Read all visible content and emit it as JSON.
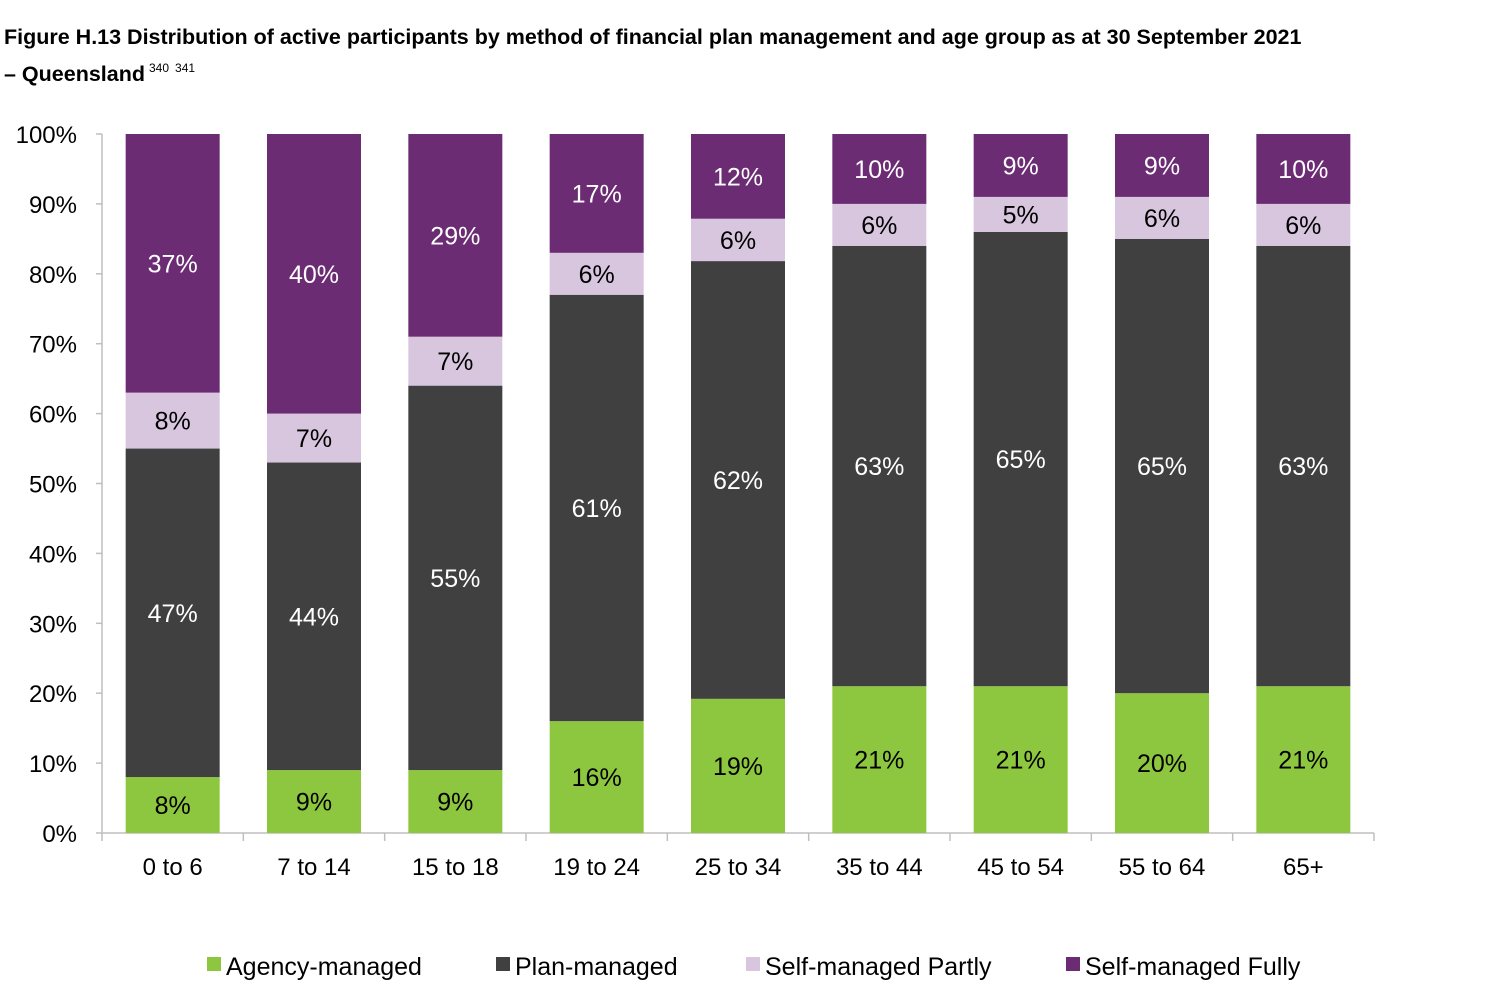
{
  "figure": {
    "title_line1": "Figure H.13 Distribution of active participants by method of financial plan management and age group as at 30 September 2021",
    "title_line2": "– Queensland",
    "footnotes": [
      "340",
      "341"
    ]
  },
  "chart_data": {
    "type": "bar",
    "stacked": true,
    "percent_scale": true,
    "categories": [
      "0 to 6",
      "7 to 14",
      "15 to 18",
      "19 to 24",
      "25 to 34",
      "35 to 44",
      "45 to 54",
      "55 to 64",
      "65+"
    ],
    "y_ticks": [
      "0%",
      "10%",
      "20%",
      "30%",
      "40%",
      "50%",
      "60%",
      "70%",
      "80%",
      "90%",
      "100%"
    ],
    "ylim": [
      0,
      100
    ],
    "grid": false,
    "legend_position": "bottom",
    "series": [
      {
        "name": "Agency-managed",
        "color": "#8dc63f",
        "values": [
          8,
          9,
          9,
          16,
          19,
          21,
          21,
          20,
          21
        ],
        "labels": [
          "8%",
          "9%",
          "9%",
          "16%",
          "19%",
          "21%",
          "21%",
          "20%",
          "21%"
        ],
        "label_color": "#000000"
      },
      {
        "name": "Plan-managed",
        "color": "#404041",
        "values": [
          47,
          44,
          55,
          61,
          62,
          63,
          65,
          65,
          63
        ],
        "labels": [
          "47%",
          "44%",
          "55%",
          "61%",
          "62%",
          "63%",
          "65%",
          "65%",
          "63%"
        ],
        "label_color": "#ffffff"
      },
      {
        "name": "Self-managed Partly",
        "color": "#d7c6de",
        "values": [
          8,
          7,
          7,
          6,
          6,
          6,
          5,
          6,
          6
        ],
        "labels": [
          "8%",
          "7%",
          "7%",
          "6%",
          "6%",
          "6%",
          "5%",
          "6%",
          "6%"
        ],
        "label_color": "#000000"
      },
      {
        "name": "Self-managed Fully",
        "color": "#6b2c74",
        "values": [
          37,
          40,
          29,
          17,
          12,
          10,
          9,
          9,
          10
        ],
        "labels": [
          "37%",
          "40%",
          "29%",
          "17%",
          "12%",
          "10%",
          "9%",
          "9%",
          "10%"
        ],
        "label_color": "#ffffff"
      }
    ]
  }
}
